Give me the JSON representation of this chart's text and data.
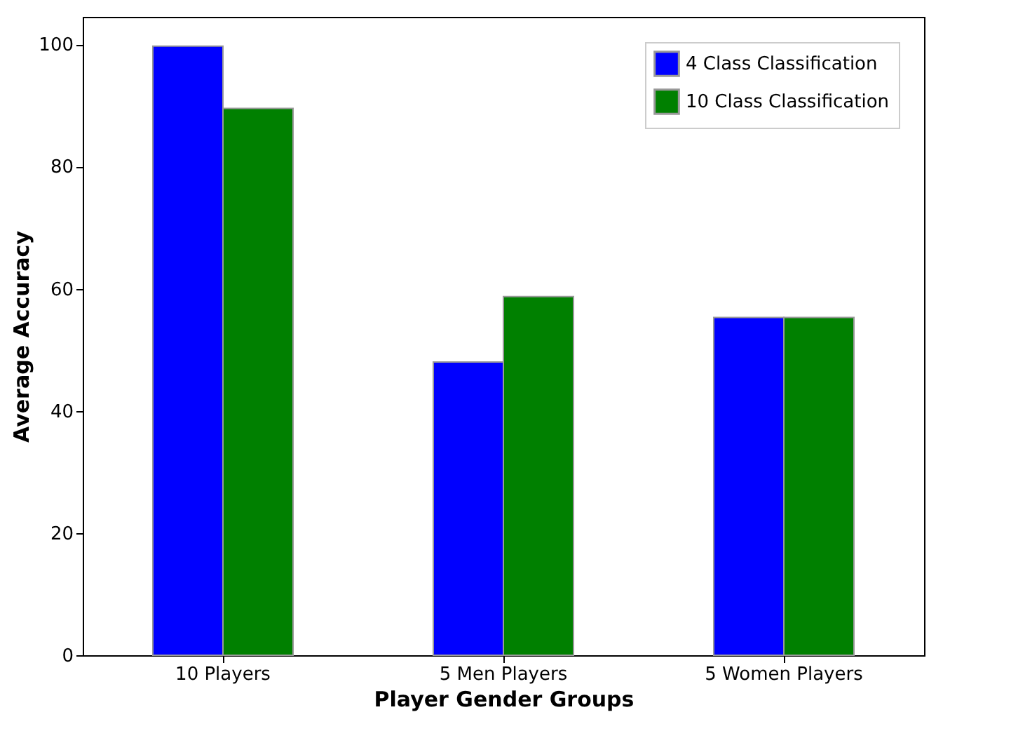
{
  "chart_data": {
    "type": "bar",
    "xlabel": "Player Gender Groups",
    "ylabel": "Average Accuracy",
    "categories": [
      "10 Players",
      "5 Men Players",
      "5 Women Players"
    ],
    "series": [
      {
        "name": "4 Class Classification",
        "color": "#0000ff",
        "values": [
          99.7,
          48.0,
          55.3
        ]
      },
      {
        "name": "10 Class Classification",
        "color": "#008000",
        "values": [
          89.5,
          58.7,
          55.3
        ]
      }
    ],
    "ylim": [
      0,
      104.5
    ],
    "yticks": [
      0,
      20,
      40,
      60,
      80,
      100
    ],
    "grid": false,
    "legend": "top right"
  }
}
